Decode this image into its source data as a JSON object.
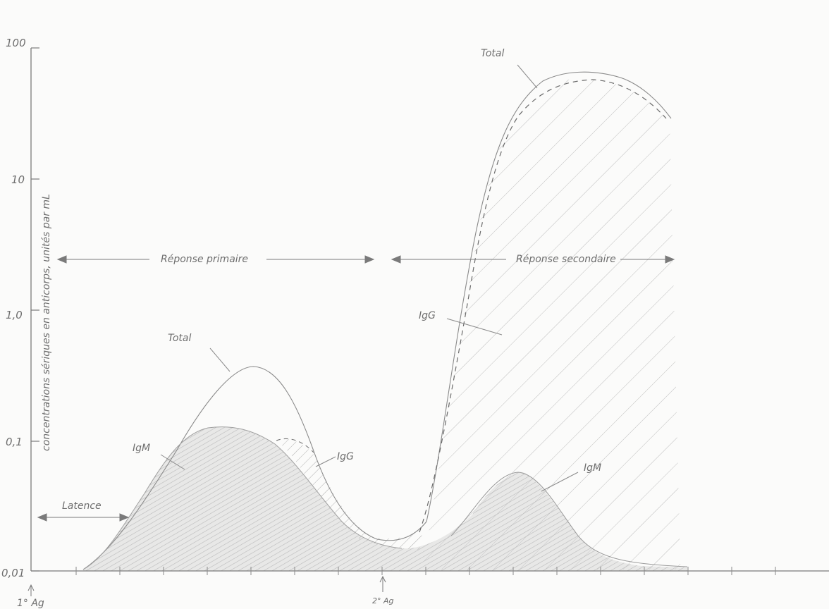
{
  "y_axis": {
    "label": "concentrations sériques en anticorps, unités par mL",
    "ticks": [
      "100",
      "10",
      "1,0",
      "0,1",
      "0,01"
    ]
  },
  "x_axis": {
    "markers": [
      "1° Ag",
      "2° Ag"
    ]
  },
  "labels": {
    "primary_response": "Réponse primaire",
    "secondary_response": "Réponse secondaire",
    "latency": "Latence",
    "total_primary": "Total",
    "total_secondary": "Total",
    "igm_primary": "IgM",
    "igg_primary": "IgG",
    "igg_secondary": "IgG",
    "igm_secondary": "IgM"
  },
  "colors": {
    "pencil": "#7a7a7a",
    "shade": "#c9c9c9",
    "background": "#fbfbfa"
  }
}
